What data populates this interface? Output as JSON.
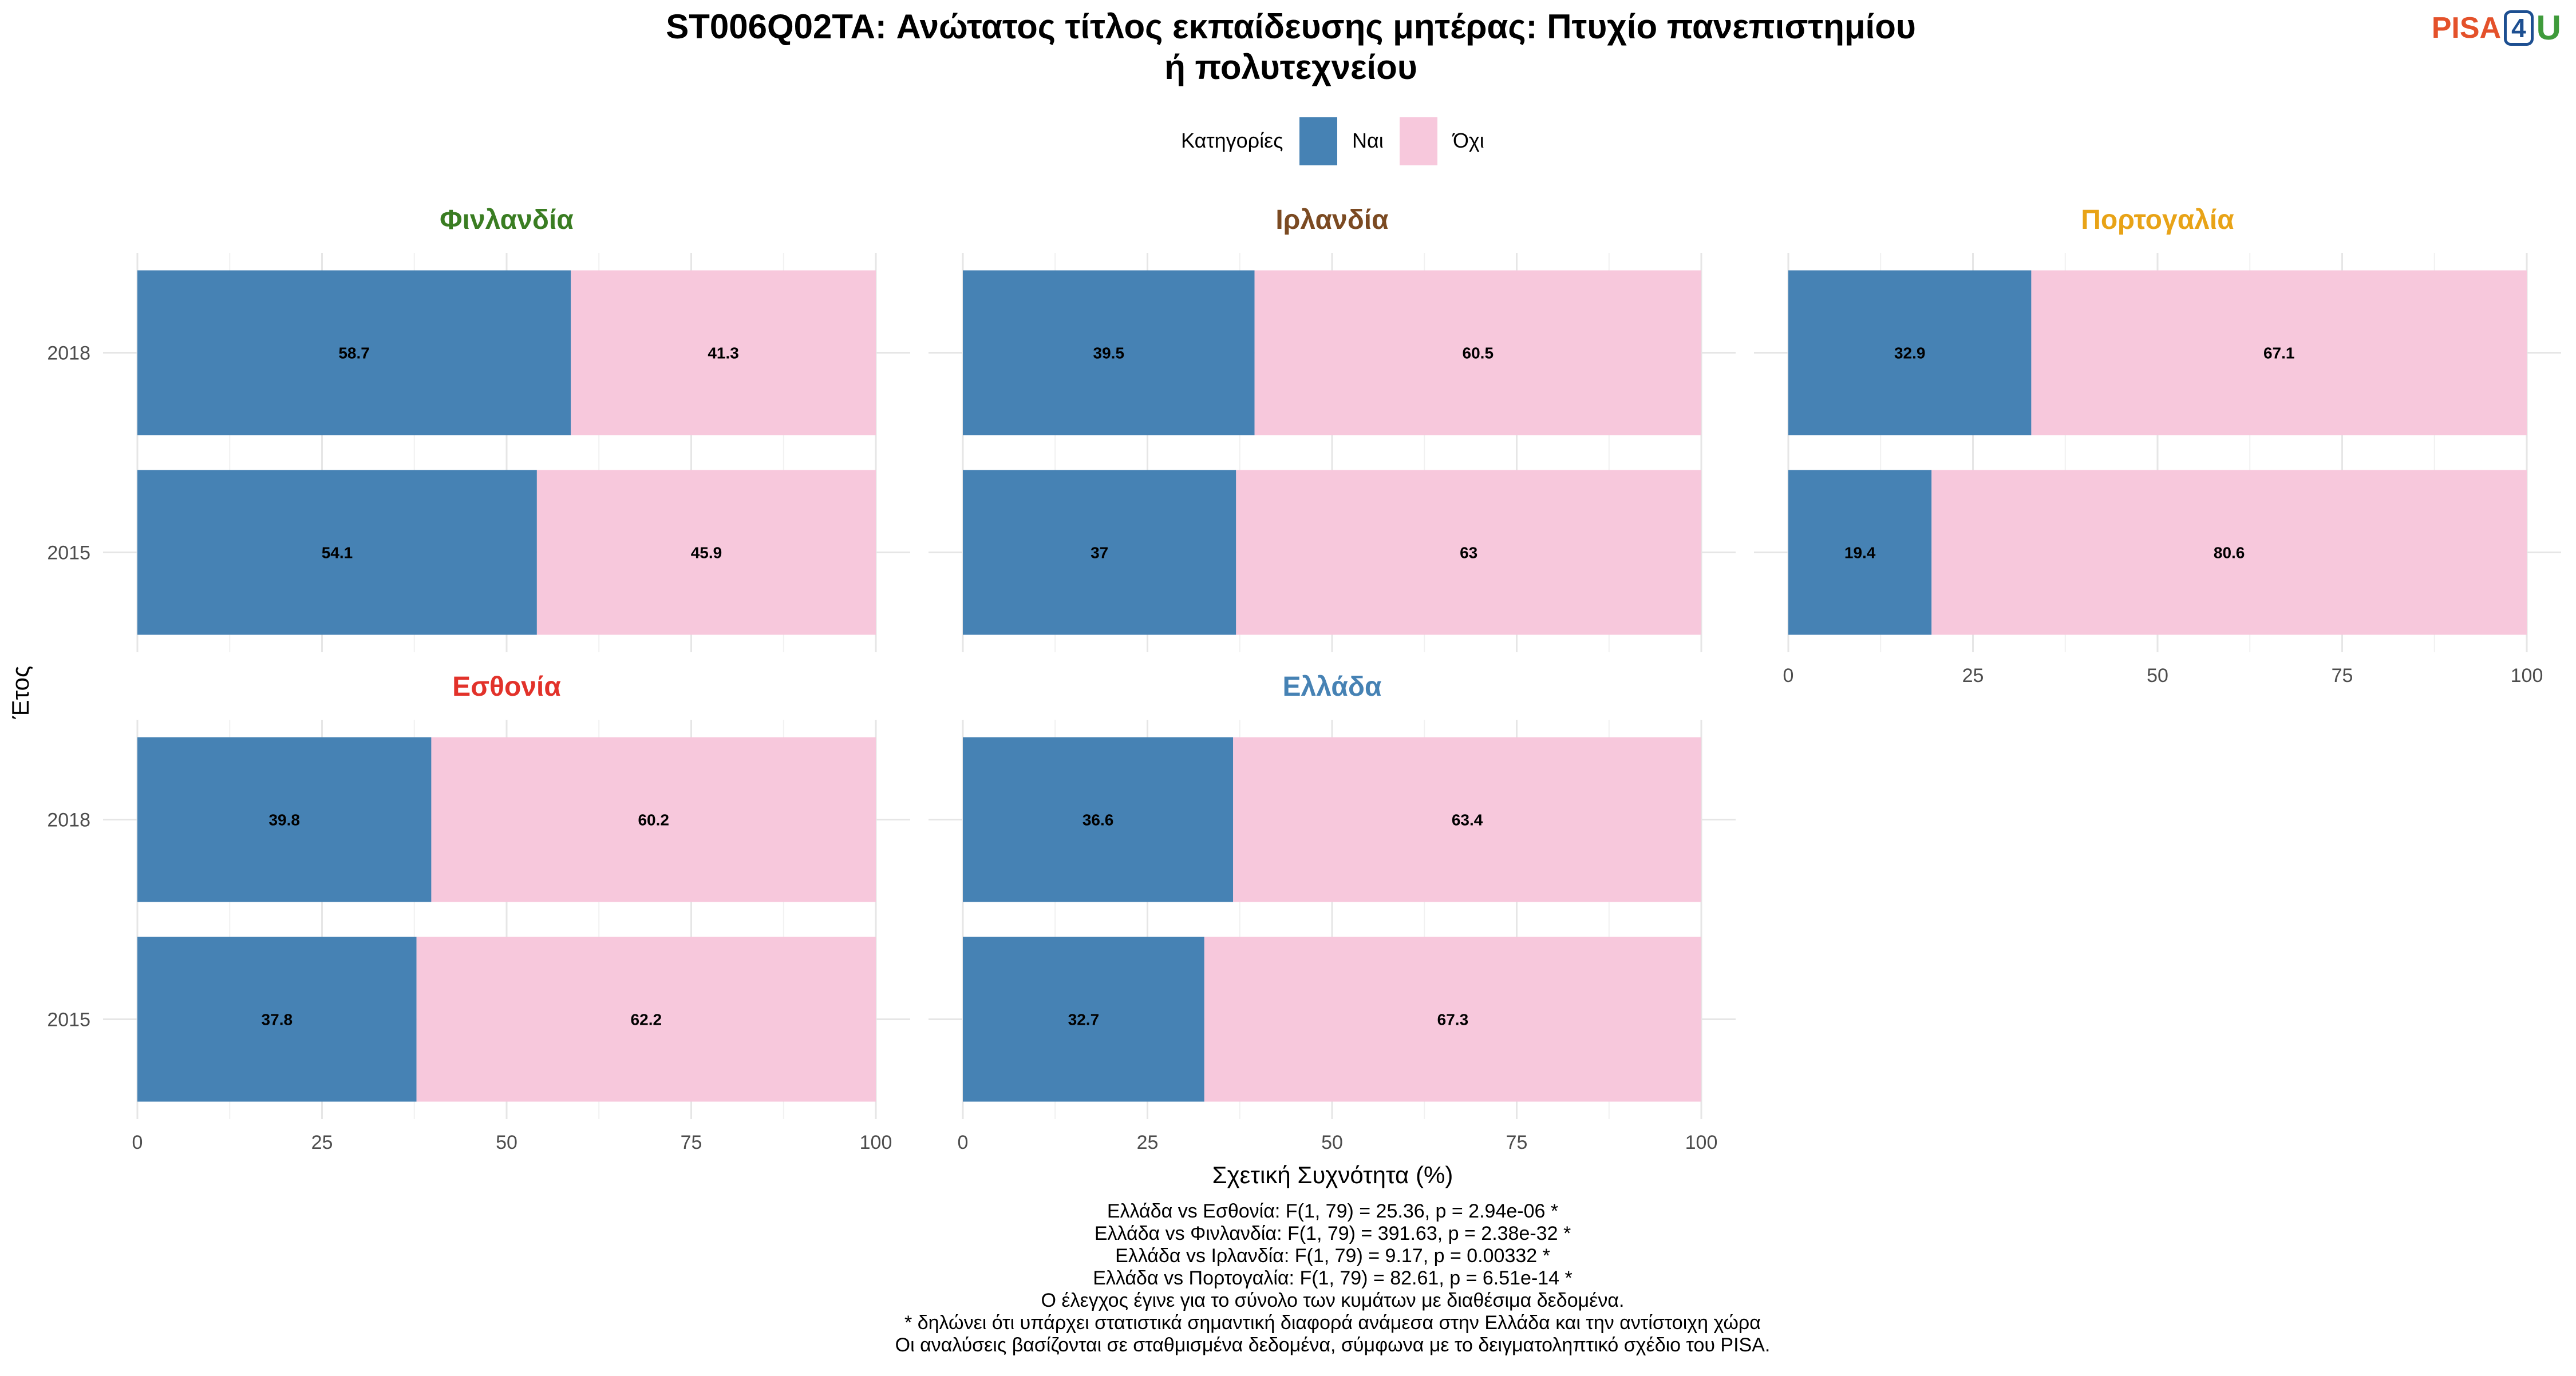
{
  "title_line1": "ST006Q02TA: Ανώτατος τίτλος εκπαίδευσης μητέρας: Πτυχίο πανεπιστημίου",
  "title_line2": "ή πολυτεχνείου",
  "logo": {
    "pisa": "PISA",
    "four": "4",
    "u": "U"
  },
  "legend": {
    "title": "Κατηγορίες",
    "items": [
      {
        "label": "Ναι",
        "color": "#4682b4"
      },
      {
        "label": "Όχι",
        "color": "#f7c8dc"
      }
    ]
  },
  "xlabel": "Σχετική Συχνότητα (%)",
  "ylabel": "Έτος",
  "chart_data": {
    "type": "bar",
    "orientation": "horizontal",
    "stacked": true,
    "xlim": [
      0,
      100
    ],
    "xticks": [
      0,
      25,
      50,
      75,
      100
    ],
    "categories": [
      "2018",
      "2015"
    ],
    "series_names": [
      "Ναι",
      "Όχι"
    ],
    "panels": [
      {
        "country": "Φινλανδία",
        "color": "#3a7d22",
        "values": {
          "2018": [
            58.7,
            41.3
          ],
          "2015": [
            54.1,
            45.9
          ]
        },
        "labels": {
          "2018": [
            "58.7",
            "41.3"
          ],
          "2015": [
            "54.1",
            "45.9"
          ]
        }
      },
      {
        "country": "Ιρλανδία",
        "color": "#7b4a22",
        "values": {
          "2018": [
            39.5,
            60.5
          ],
          "2015": [
            37,
            63
          ]
        },
        "labels": {
          "2018": [
            "39.5",
            "60.5"
          ],
          "2015": [
            "37",
            "63"
          ]
        }
      },
      {
        "country": "Πορτογαλία",
        "color": "#e8a317",
        "values": {
          "2018": [
            32.9,
            67.1
          ],
          "2015": [
            19.4,
            80.6
          ]
        },
        "labels": {
          "2018": [
            "32.9",
            "67.1"
          ],
          "2015": [
            "19.4",
            "80.6"
          ]
        }
      },
      {
        "country": "Εσθονία",
        "color": "#e2322a",
        "values": {
          "2018": [
            39.8,
            60.2
          ],
          "2015": [
            37.8,
            62.2
          ]
        },
        "labels": {
          "2018": [
            "39.8",
            "60.2"
          ],
          "2015": [
            "37.8",
            "62.2"
          ]
        }
      },
      {
        "country": "Ελλάδα",
        "color": "#4682b4",
        "values": {
          "2018": [
            36.6,
            63.4
          ],
          "2015": [
            32.7,
            67.3
          ]
        },
        "labels": {
          "2018": [
            "36.6",
            "63.4"
          ],
          "2015": [
            "32.7",
            "67.3"
          ]
        }
      }
    ]
  },
  "caption": [
    "Ελλάδα vs Εσθονία: F(1, 79) = 25.36, p = 2.94e-06 *",
    "Ελλάδα vs Φινλανδία: F(1, 79) = 391.63, p = 2.38e-32 *",
    "Ελλάδα vs Ιρλανδία: F(1, 79) = 9.17, p = 0.00332 *",
    "Ελλάδα vs Πορτογαλία: F(1, 79) = 82.61, p = 6.51e-14 *",
    "Ο έλεγχος έγινε για το σύνολο των κυμάτων με διαθέσιμα δεδομένα.",
    "* δηλώνει ότι υπάρχει στατιστικά σημαντική διαφορά ανάμεσα στην Ελλάδα και την αντίστοιχη χώρα",
    "Οι αναλύσεις βασίζονται σε σταθμισμένα δεδομένα, σύμφωνα με το δειγματοληπτικό σχέδιο του PISA."
  ]
}
